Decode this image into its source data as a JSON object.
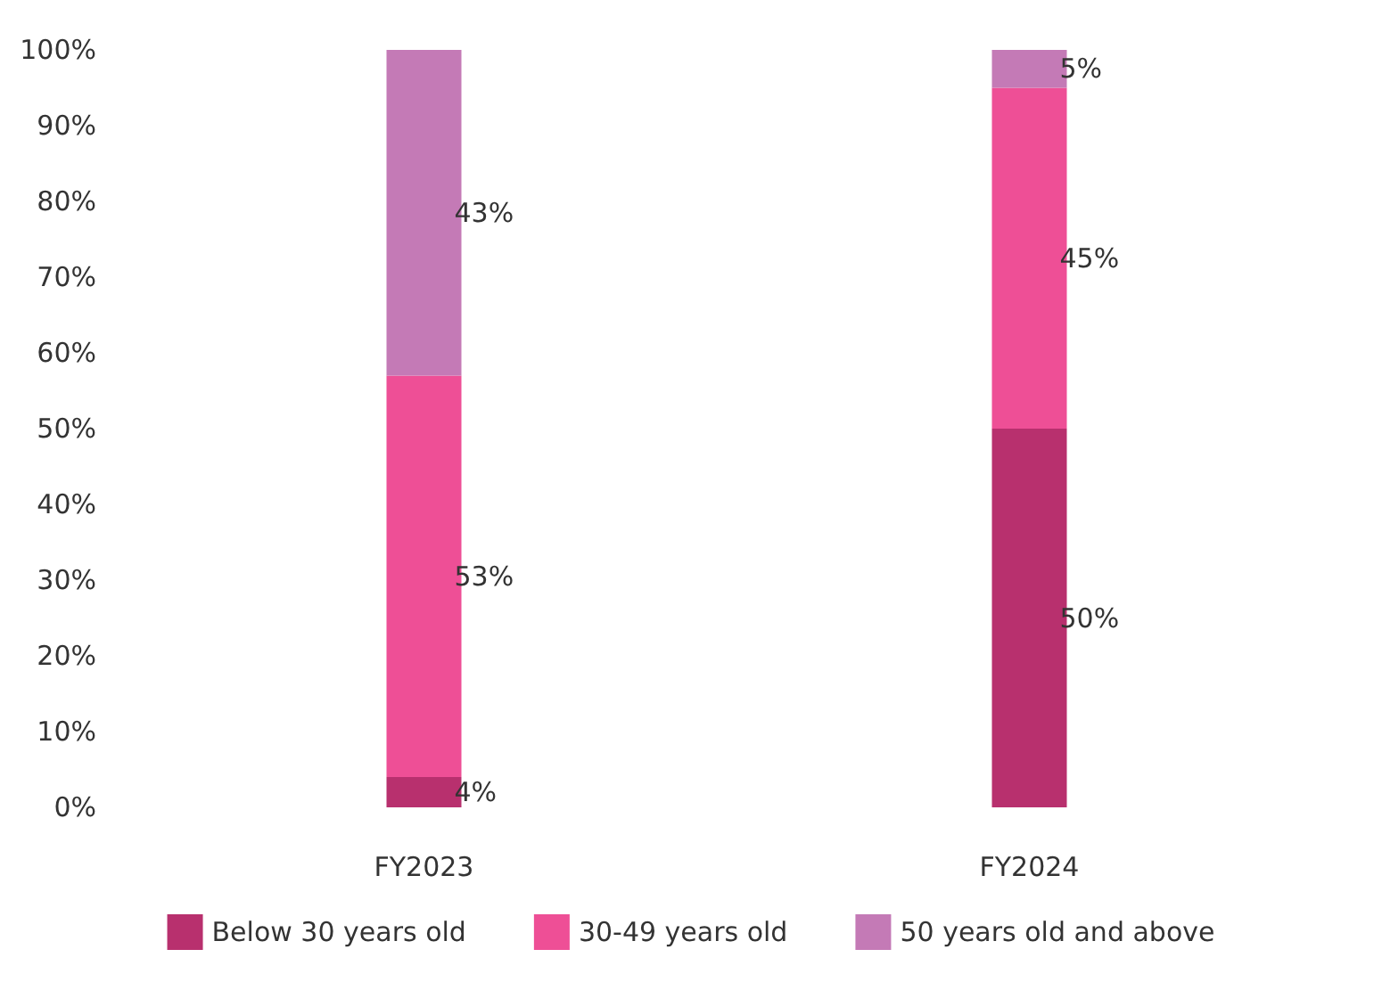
{
  "chart_data": {
    "type": "bar",
    "stacked": true,
    "categories": [
      "FY2023",
      "FY2024"
    ],
    "series": [
      {
        "name": "Below 30 years old",
        "color": "#b8306e",
        "values": [
          4,
          50
        ],
        "value_labels": [
          "4%",
          "50%"
        ]
      },
      {
        "name": "30-49 years old",
        "color": "#ee4f96",
        "values": [
          53,
          45
        ],
        "value_labels": [
          "53%",
          "45%"
        ]
      },
      {
        "name": "50 years old and above",
        "color": "#c47ab6",
        "values": [
          43,
          5
        ],
        "value_labels": [
          "43%",
          "5%"
        ]
      }
    ],
    "ylim": [
      0,
      100
    ],
    "yticks": [
      {
        "value": 0,
        "label": "0%"
      },
      {
        "value": 10,
        "label": "10%"
      },
      {
        "value": 20,
        "label": "20%"
      },
      {
        "value": 30,
        "label": "30%"
      },
      {
        "value": 40,
        "label": "40%"
      },
      {
        "value": 50,
        "label": "50%"
      },
      {
        "value": 60,
        "label": "60%"
      },
      {
        "value": 70,
        "label": "70%"
      },
      {
        "value": 80,
        "label": "80%"
      },
      {
        "value": 90,
        "label": "90%"
      },
      {
        "value": 100,
        "label": "100%"
      }
    ],
    "grid": false,
    "legend": "bottom"
  }
}
